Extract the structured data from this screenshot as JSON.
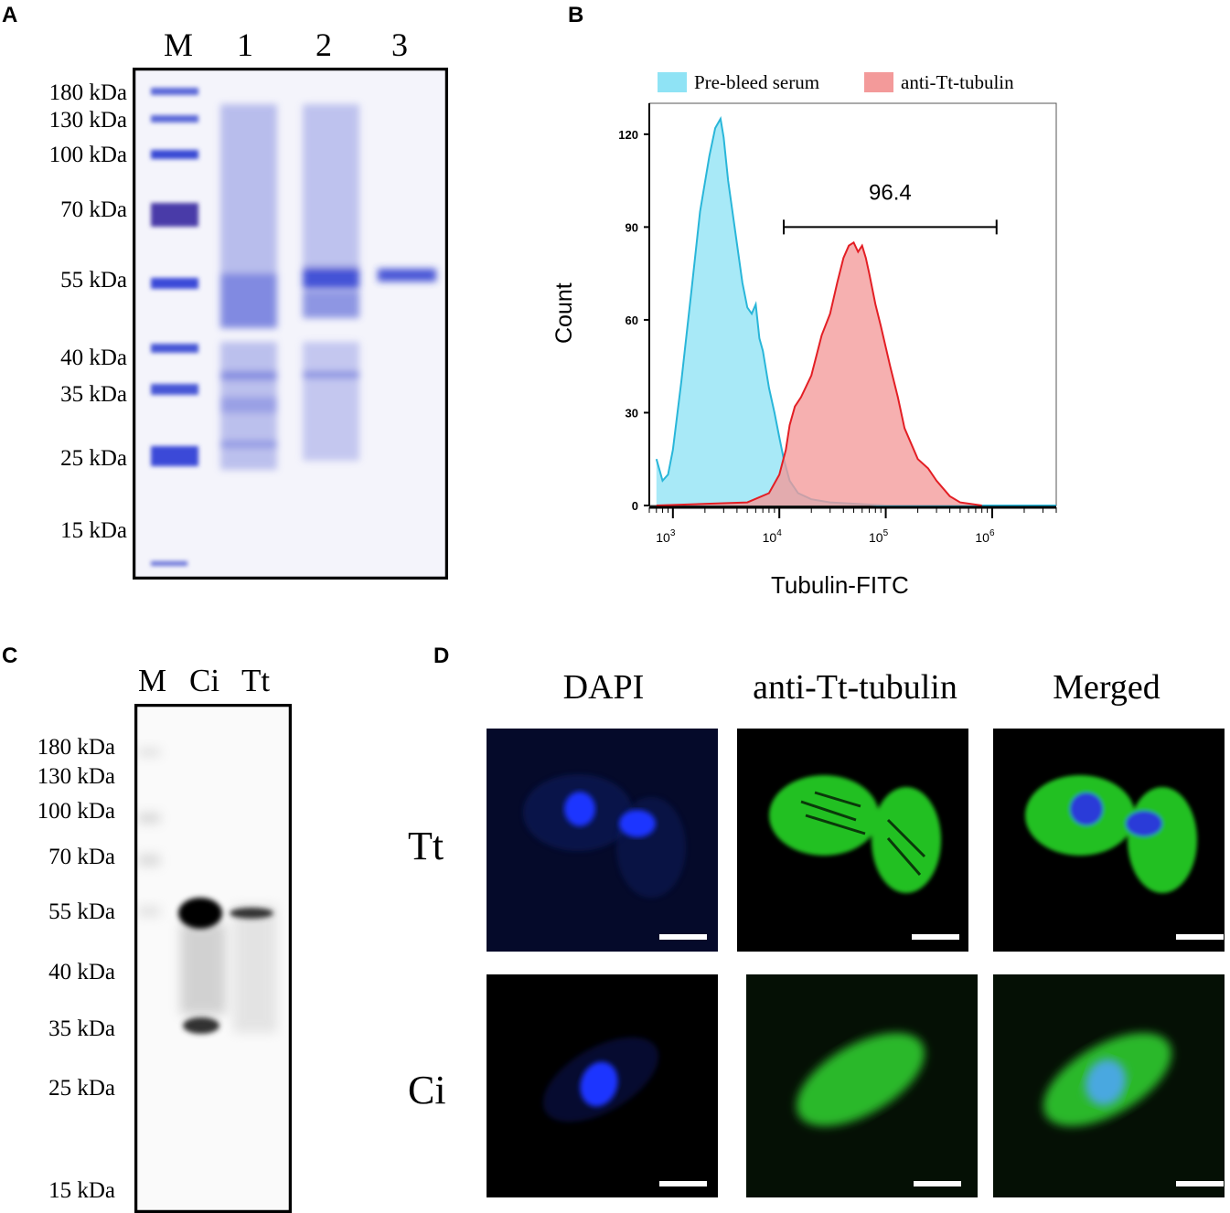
{
  "panels": {
    "a": {
      "letter": "A",
      "lanes": [
        "M",
        "1",
        "2",
        "3"
      ],
      "markers": [
        "180 kDa",
        "130 kDa",
        "100 kDa",
        "70 kDa",
        "55 kDa",
        "40 kDa",
        "35 kDa",
        "25 kDa",
        "15 kDa"
      ]
    },
    "b": {
      "letter": "B",
      "legend": [
        {
          "name": "Pre-bleed serum",
          "color": "#8fe3f5"
        },
        {
          "name": "anti-Tt-tubulin",
          "color": "#f39a9a"
        }
      ],
      "ylabel": "Count",
      "xlabel": "Tubulin-FITC",
      "gate_label": "96.4"
    },
    "c": {
      "letter": "C",
      "lanes": [
        "M",
        "Ci",
        "Tt"
      ],
      "markers": [
        "180 kDa",
        "130 kDa",
        "100 kDa",
        "70 kDa",
        "55 kDa",
        "40 kDa",
        "35 kDa",
        "25 kDa",
        "15 kDa"
      ]
    },
    "d": {
      "letter": "D",
      "columns": [
        "DAPI",
        "anti-Tt-tubulin",
        "Merged"
      ],
      "rows": [
        "Tt",
        "Ci"
      ]
    }
  },
  "chart_data": {
    "type": "area",
    "title": "",
    "xlabel": "Tubulin-FITC",
    "ylabel": "Count",
    "x_scale": "log",
    "xlim": [
      600,
      4000000
    ],
    "ylim": [
      0,
      130
    ],
    "yticks": [
      0,
      30,
      60,
      90,
      120
    ],
    "xticks": [
      "10^3",
      "10^4",
      "10^5",
      "10^6"
    ],
    "gate": {
      "label": "96.4",
      "x_start": 11000,
      "x_end": 1100000,
      "y": 90
    },
    "series": [
      {
        "name": "Pre-bleed serum",
        "color": "#8fe3f5",
        "stroke": "#29b6d9",
        "x": [
          700,
          800,
          900,
          1000,
          1200,
          1500,
          1800,
          2200,
          2500,
          2800,
          3000,
          3300,
          3800,
          4500,
          5000,
          5500,
          6000,
          6500,
          7000,
          8000,
          9000,
          10000,
          11000,
          12500,
          15000,
          20000,
          30000,
          100000,
          1000000,
          4000000
        ],
        "y": [
          15,
          8,
          10,
          18,
          40,
          70,
          95,
          113,
          122,
          125,
          119,
          105,
          90,
          72,
          64,
          62,
          65,
          54,
          50,
          38,
          30,
          22,
          15,
          8,
          4,
          2,
          1,
          0,
          0,
          0
        ]
      },
      {
        "name": "anti-Tt-tubulin",
        "color": "#f39a9a",
        "stroke": "#e31e24",
        "x": [
          700,
          5000,
          8000,
          10000,
          11500,
          12500,
          14000,
          16000,
          20000,
          25000,
          30000,
          35000,
          40000,
          45000,
          50000,
          55000,
          60000,
          65000,
          70000,
          80000,
          90000,
          110000,
          130000,
          150000,
          200000,
          250000,
          300000,
          400000,
          500000,
          800000
        ],
        "y": [
          0,
          1,
          4,
          10,
          18,
          26,
          32,
          35,
          42,
          55,
          62,
          72,
          80,
          84,
          85,
          82,
          84,
          80,
          75,
          65,
          58,
          45,
          35,
          25,
          15,
          12,
          8,
          3,
          1,
          0
        ]
      }
    ]
  }
}
